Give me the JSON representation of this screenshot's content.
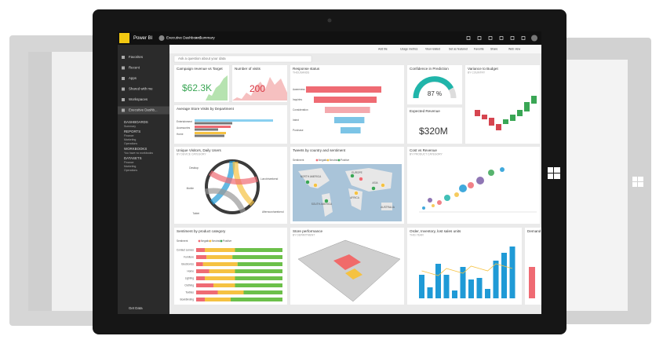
{
  "header": {
    "app": "Power BI",
    "workspace": "Executive Dashboard",
    "separator": ">",
    "page": "Summary"
  },
  "nav": {
    "items": [
      "Favorites",
      "Recent",
      "Apps",
      "Shared with me",
      "Workspaces",
      "Executive Dashb..."
    ],
    "sections": [
      {
        "title": "DASHBOARDS",
        "items": [
          "Summary"
        ]
      },
      {
        "title": "REPORTS",
        "items": [
          "Finance",
          "Marketing",
          "Operations"
        ]
      },
      {
        "title": "WORKBOOKS",
        "items": [
          "You have no workbooks"
        ]
      },
      {
        "title": "DATASETS",
        "items": [
          "Finance",
          "Marketing",
          "Operations"
        ]
      }
    ],
    "footer": "Get Data"
  },
  "toolbar": [
    "Add tile",
    "Usage metrics",
    "View related",
    "Set as featured",
    "Favorite",
    "Share",
    "Web view"
  ],
  "qna": "Ask a question about your data",
  "tiles": {
    "campaign": {
      "title": "Campaign revenue vs Target",
      "value": "$62.3K"
    },
    "visits": {
      "title": "Number of visits",
      "value": "200"
    },
    "response": {
      "title": "Response status",
      "subtitle": "THOUSANDS",
      "stages": [
        "Awareness",
        "Inquiries",
        "Consideration",
        "Intent",
        "Purchase"
      ]
    },
    "confidence": {
      "title": "Confidence in Prediction",
      "value": "87 %"
    },
    "variance": {
      "title": "Variance to Budget",
      "subtitle": "BY COUNTRY"
    },
    "store_visits": {
      "title": "Average Store Visits by Department",
      "labels": [
        "Entertainment",
        "Accessories",
        "Home"
      ]
    },
    "expected": {
      "title": "Expected Revenue",
      "value": "$320M"
    },
    "unique": {
      "title": "Unique Visitors, Daily Users",
      "subtitle": "BY DEVICE CATEGORY",
      "labels": [
        "Desktop",
        "Mobile",
        "Tablet",
        "Lunch/weekend",
        "Afternoon/weekend"
      ]
    },
    "tweets": {
      "title": "Tweets by country and sentiment",
      "legend": [
        "Sentiment",
        "Negative",
        "Neutral",
        "Positive"
      ],
      "regions": [
        "NORTH AMERICA",
        "EUROPE",
        "ASIA",
        "AFRICA",
        "SOUTH AMERICA",
        "AUSTRALIA"
      ]
    },
    "cost": {
      "title": "Cost vs Revenue",
      "subtitle": "BY PRODUCT CATEGORY"
    },
    "sentiment": {
      "title": "Sentiment by product category",
      "legend": [
        "Sentiment",
        "Negative",
        "Neutral",
        "Positive"
      ],
      "categories": [
        "Contact Lenses",
        "Furniture",
        "Electronics",
        "Home",
        "Lighting",
        "Clothing",
        "Textiles",
        "Bookbinding"
      ]
    },
    "store": {
      "title": "Store performance",
      "subtitle": "BY DEPARTMENT"
    },
    "order": {
      "title": "Order, Inventory, lost sales units",
      "subtitle": "THIS YEAR"
    },
    "demand": {
      "title": "Demand"
    }
  }
}
